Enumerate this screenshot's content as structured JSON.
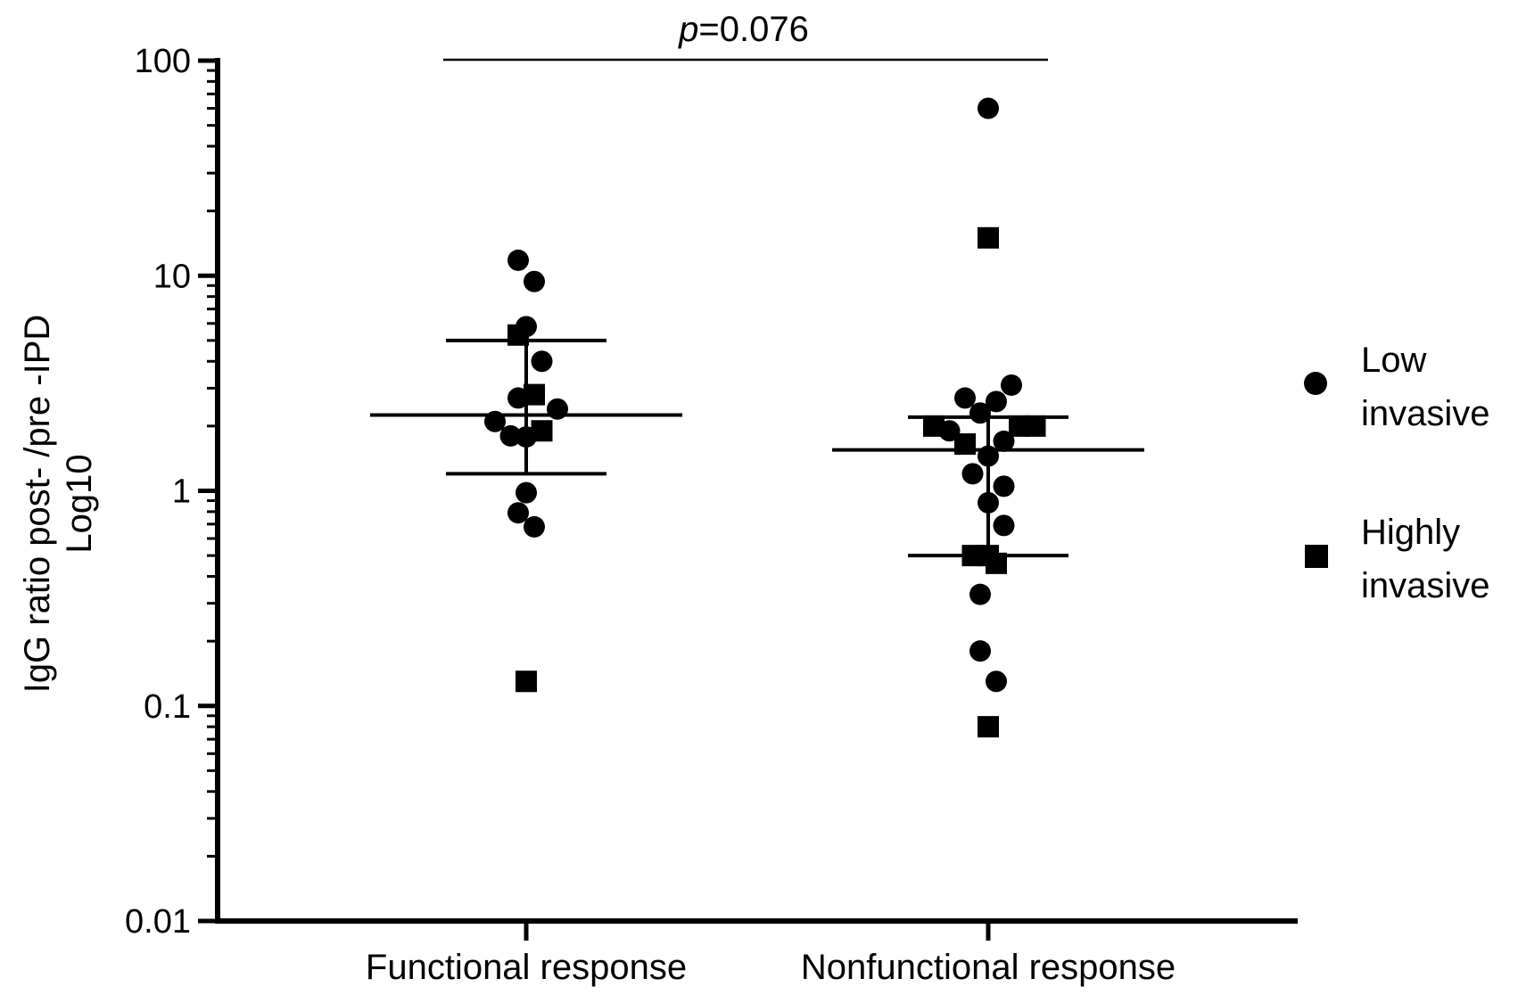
{
  "chart_data": {
    "type": "scatter",
    "title": "",
    "ylabel_lines": [
      "IgG ratio post- /pre -IPD",
      "Log10"
    ],
    "xlabel": "",
    "yscale": "log",
    "ylim": [
      0.01,
      100
    ],
    "yticks": [
      {
        "value": 100,
        "label": "100"
      },
      {
        "value": 10,
        "label": "10"
      },
      {
        "value": 1,
        "label": "1"
      },
      {
        "value": 0.1,
        "label": "0.1"
      },
      {
        "value": 0.01,
        "label": "0.01"
      }
    ],
    "categories": [
      "Functional response",
      "Nonfunctional response"
    ],
    "marker_legend": {
      "circle_lines": [
        "Low",
        "invasive"
      ],
      "square_lines": [
        "Highly",
        "invasive"
      ]
    },
    "significance": {
      "p_italic": "p",
      "rest": "=0.076"
    },
    "summary": [
      {
        "category": "Functional response",
        "median": 2.25,
        "q1": 1.2,
        "q3": 5.0
      },
      {
        "category": "Nonfunctional response",
        "median": 1.55,
        "q1": 0.5,
        "q3": 2.2
      }
    ],
    "series": [
      {
        "name": "Low invasive",
        "marker": "circle",
        "points": [
          {
            "category": "Functional response",
            "jitter": -0.18,
            "y": 11.8
          },
          {
            "category": "Functional response",
            "jitter": 0.18,
            "y": 9.4
          },
          {
            "category": "Functional response",
            "jitter": 0.0,
            "y": 5.8
          },
          {
            "category": "Functional response",
            "jitter": 0.35,
            "y": 4.0
          },
          {
            "category": "Functional response",
            "jitter": -0.18,
            "y": 2.7
          },
          {
            "category": "Functional response",
            "jitter": 0.7,
            "y": 2.4
          },
          {
            "category": "Functional response",
            "jitter": -0.7,
            "y": 2.1
          },
          {
            "category": "Functional response",
            "jitter": -0.35,
            "y": 1.8
          },
          {
            "category": "Functional response",
            "jitter": 0.0,
            "y": 1.78
          },
          {
            "category": "Functional response",
            "jitter": 0.0,
            "y": 0.98
          },
          {
            "category": "Functional response",
            "jitter": -0.18,
            "y": 0.79
          },
          {
            "category": "Functional response",
            "jitter": 0.18,
            "y": 0.68
          },
          {
            "category": "Nonfunctional response",
            "jitter": 0.0,
            "y": 60
          },
          {
            "category": "Nonfunctional response",
            "jitter": 0.52,
            "y": 3.1
          },
          {
            "category": "Nonfunctional response",
            "jitter": -0.52,
            "y": 2.7
          },
          {
            "category": "Nonfunctional response",
            "jitter": 0.18,
            "y": 2.6
          },
          {
            "category": "Nonfunctional response",
            "jitter": -0.18,
            "y": 2.3
          },
          {
            "category": "Nonfunctional response",
            "jitter": -0.87,
            "y": 1.9
          },
          {
            "category": "Nonfunctional response",
            "jitter": 0.35,
            "y": 1.7
          },
          {
            "category": "Nonfunctional response",
            "jitter": 0.0,
            "y": 1.45
          },
          {
            "category": "Nonfunctional response",
            "jitter": -0.35,
            "y": 1.2
          },
          {
            "category": "Nonfunctional response",
            "jitter": 0.35,
            "y": 1.05
          },
          {
            "category": "Nonfunctional response",
            "jitter": 0.0,
            "y": 0.88
          },
          {
            "category": "Nonfunctional response",
            "jitter": 0.35,
            "y": 0.69
          },
          {
            "category": "Nonfunctional response",
            "jitter": -0.18,
            "y": 0.33
          },
          {
            "category": "Nonfunctional response",
            "jitter": -0.18,
            "y": 0.18
          },
          {
            "category": "Nonfunctional response",
            "jitter": 0.18,
            "y": 0.13
          }
        ]
      },
      {
        "name": "Highly invasive",
        "marker": "square",
        "points": [
          {
            "category": "Functional response",
            "jitter": -0.18,
            "y": 5.3
          },
          {
            "category": "Functional response",
            "jitter": 0.18,
            "y": 2.8
          },
          {
            "category": "Functional response",
            "jitter": 0.35,
            "y": 1.9
          },
          {
            "category": "Functional response",
            "jitter": 0.0,
            "y": 0.13
          },
          {
            "category": "Nonfunctional response",
            "jitter": 0.0,
            "y": 15
          },
          {
            "category": "Nonfunctional response",
            "jitter": -1.22,
            "y": 2.0
          },
          {
            "category": "Nonfunctional response",
            "jitter": 0.7,
            "y": 2.0
          },
          {
            "category": "Nonfunctional response",
            "jitter": 1.05,
            "y": 2.0
          },
          {
            "category": "Nonfunctional response",
            "jitter": -0.52,
            "y": 1.65
          },
          {
            "category": "Nonfunctional response",
            "jitter": -0.35,
            "y": 0.5
          },
          {
            "category": "Nonfunctional response",
            "jitter": 0.0,
            "y": 0.5
          },
          {
            "category": "Nonfunctional response",
            "jitter": 0.18,
            "y": 0.46
          },
          {
            "category": "Nonfunctional response",
            "jitter": 0.0,
            "y": 0.08
          }
        ]
      }
    ]
  }
}
